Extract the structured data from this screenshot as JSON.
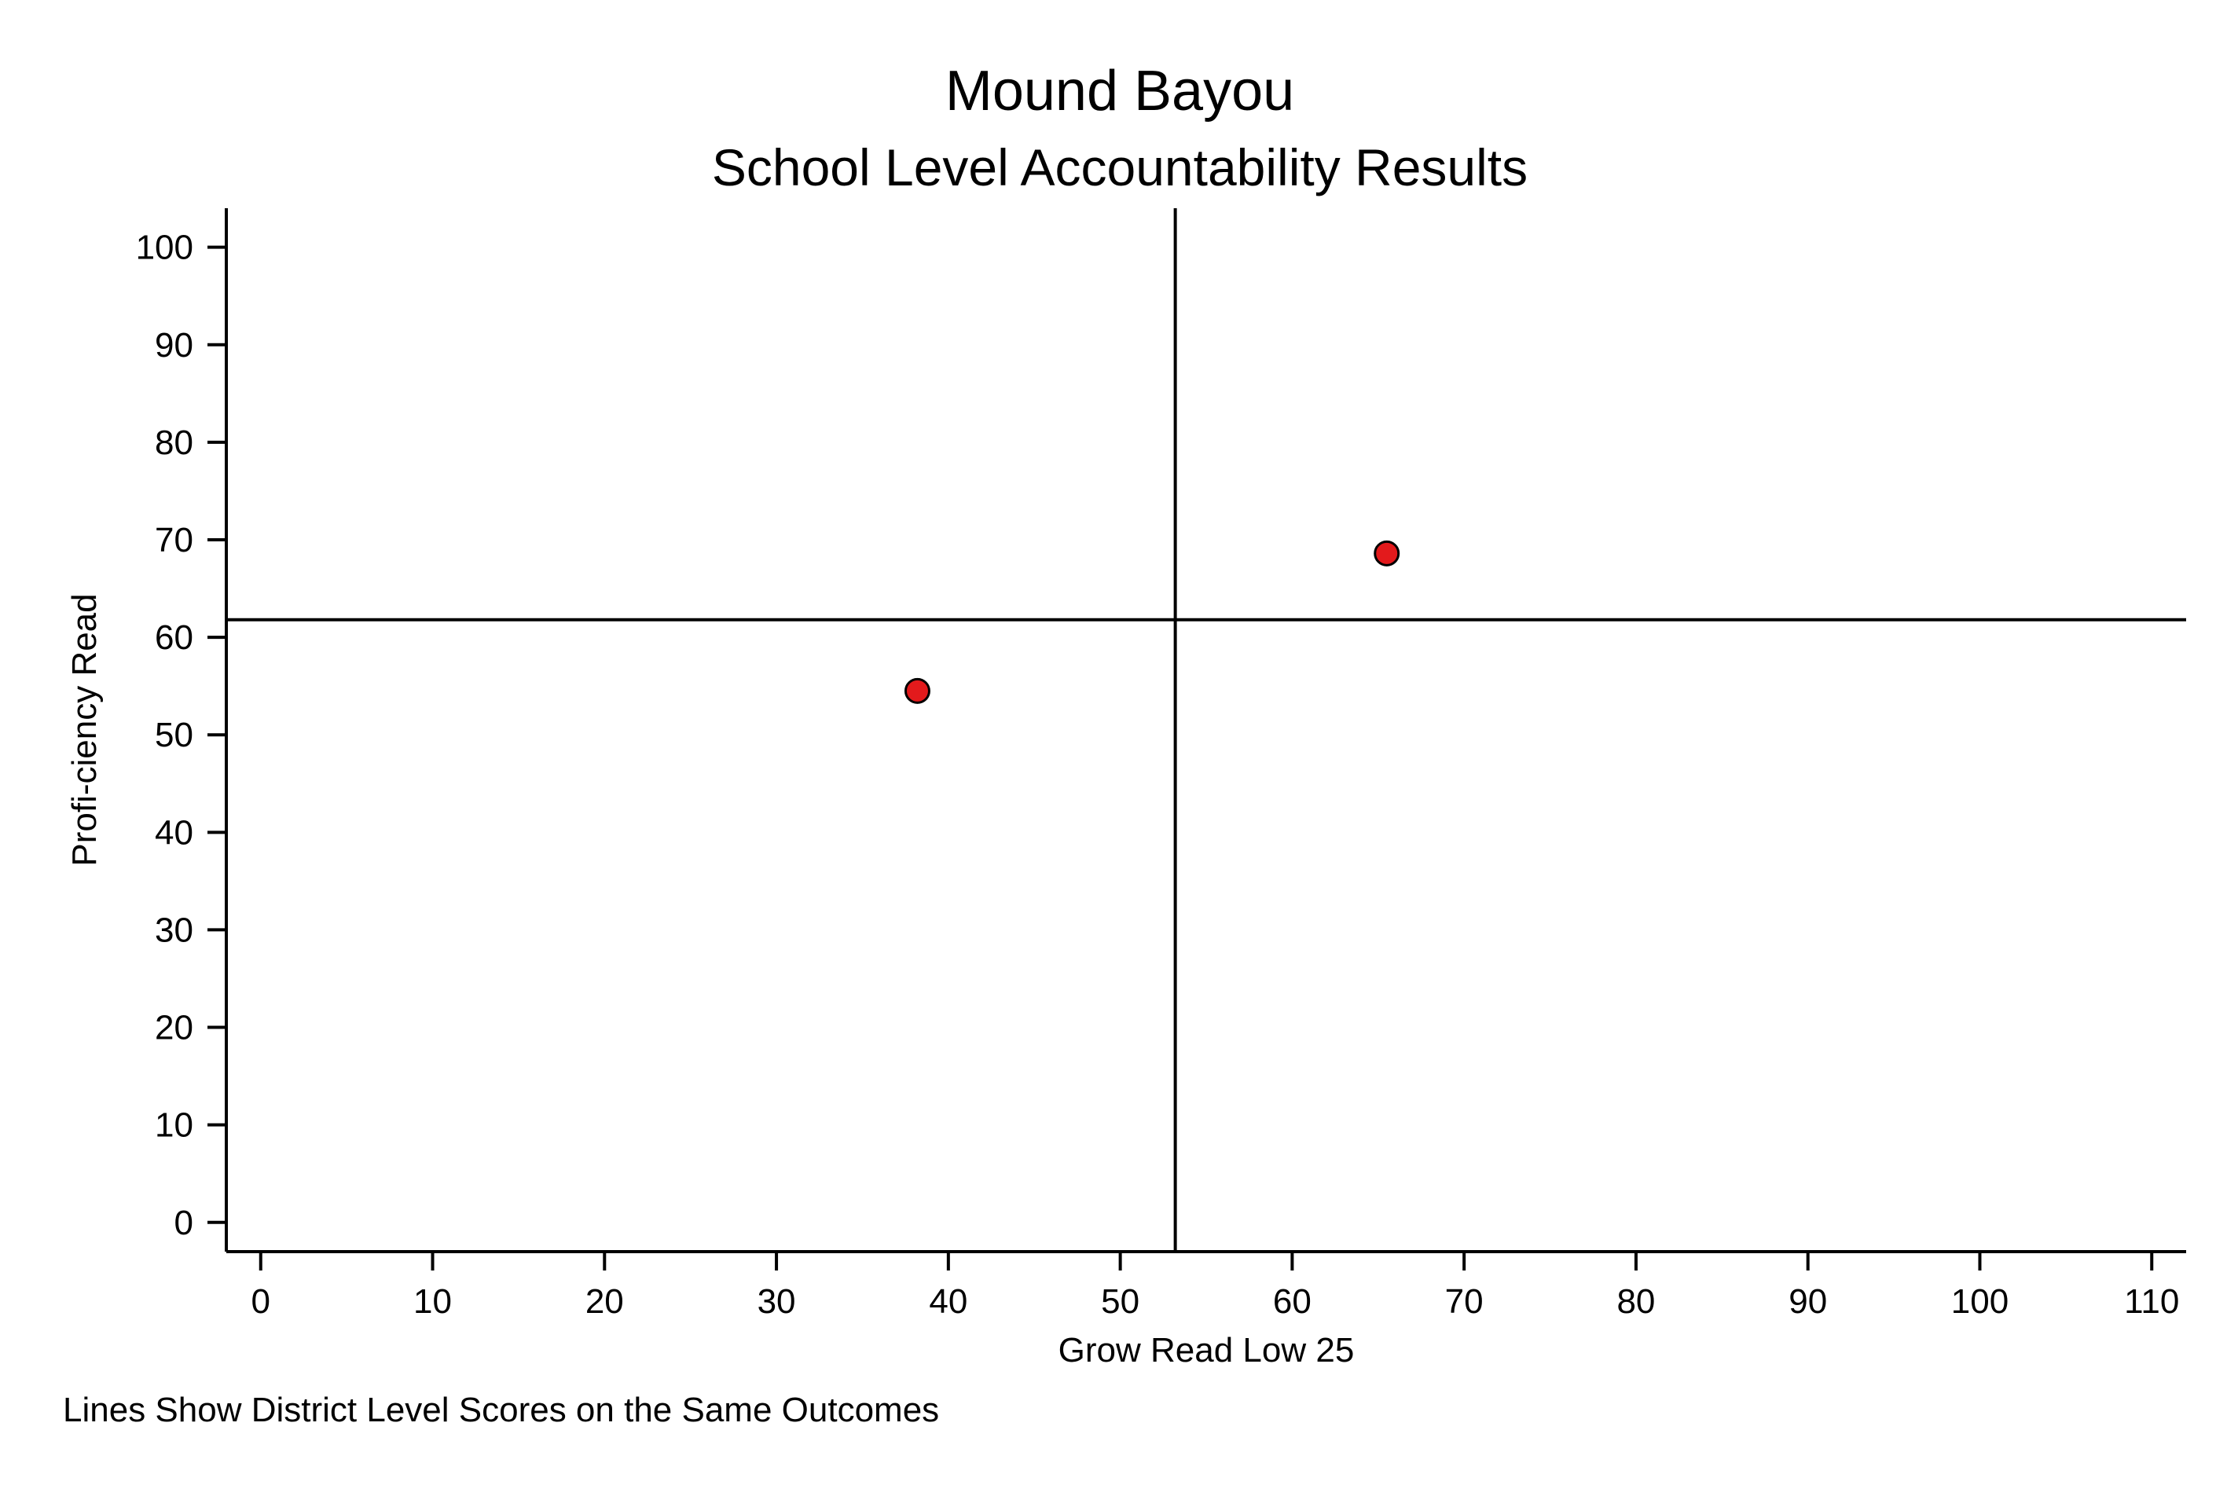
{
  "chart_data": {
    "type": "scatter",
    "title": "Mound Bayou",
    "subtitle": "School Level Accountability Results",
    "xlabel": "Grow Read Low 25",
    "ylabel": "Profi-ciency Read",
    "note": "Lines Show District Level Scores on the Same Outcomes",
    "xlim": [
      -2,
      112
    ],
    "ylim": [
      -3,
      104
    ],
    "xticks": [
      0,
      10,
      20,
      30,
      40,
      50,
      60,
      70,
      80,
      90,
      100,
      110
    ],
    "yticks": [
      0,
      10,
      20,
      30,
      40,
      50,
      60,
      70,
      80,
      90,
      100
    ],
    "points": [
      {
        "x": 38.2,
        "y": 54.5
      },
      {
        "x": 65.5,
        "y": 68.6
      }
    ],
    "reference_lines": {
      "x": 53.2,
      "y": 61.8
    },
    "marker_color": "#e31a1c",
    "marker_edge_color": "#000000",
    "grid": false,
    "legend": "none"
  }
}
